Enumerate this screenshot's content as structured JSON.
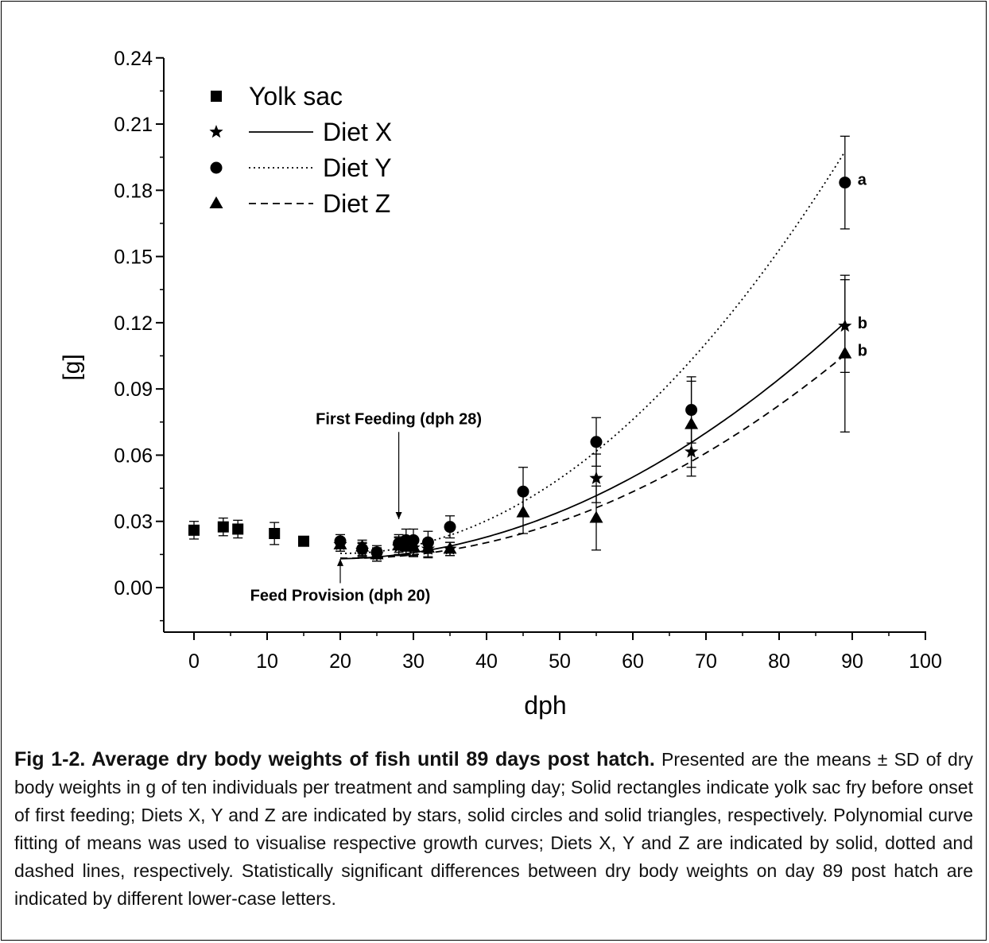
{
  "chart_data": {
    "type": "scatter",
    "xlabel": "dph",
    "ylabel": "[g]",
    "xlim": [
      -4,
      100
    ],
    "ylim": [
      -0.02,
      0.24
    ],
    "xticks": [
      0,
      10,
      20,
      30,
      40,
      50,
      60,
      70,
      80,
      90,
      100
    ],
    "yticks": [
      "0.00",
      "0.03",
      "0.06",
      "0.09",
      "0.12",
      "0.15",
      "0.18",
      "0.21",
      "0.24"
    ],
    "grid": false,
    "legend_position": "top-left",
    "legend": [
      {
        "label": "Yolk sac",
        "marker": "square",
        "line": "none"
      },
      {
        "label": "Diet X",
        "marker": "star",
        "line": "solid"
      },
      {
        "label": "Diet Y",
        "marker": "circle",
        "line": "dotted"
      },
      {
        "label": "Diet Z",
        "marker": "triangle",
        "line": "dashed"
      }
    ],
    "series": [
      {
        "name": "Yolk sac",
        "marker": "square",
        "points": [
          {
            "x": 0,
            "y": 0.026,
            "sd": 0.004
          },
          {
            "x": 4,
            "y": 0.0275,
            "sd": 0.004
          },
          {
            "x": 6,
            "y": 0.0265,
            "sd": 0.004
          },
          {
            "x": 11,
            "y": 0.0245,
            "sd": 0.005
          },
          {
            "x": 15,
            "y": 0.021,
            "sd": 0.001
          }
        ]
      },
      {
        "name": "Diet X",
        "marker": "star",
        "fit": {
          "x0": 20,
          "x1": 89,
          "a": 0.02048,
          "b": -0.000803,
          "c": 2.16e-05
        },
        "points": [
          {
            "x": 20,
            "y": 0.0195,
            "sd": 0.003
          },
          {
            "x": 23,
            "y": 0.017,
            "sd": 0.003
          },
          {
            "x": 25,
            "y": 0.015,
            "sd": 0.003
          },
          {
            "x": 28,
            "y": 0.0185,
            "sd": 0.004
          },
          {
            "x": 29,
            "y": 0.019,
            "sd": 0.004
          },
          {
            "x": 30,
            "y": 0.018,
            "sd": 0.004
          },
          {
            "x": 32,
            "y": 0.0175,
            "sd": 0.004
          },
          {
            "x": 35,
            "y": 0.0175,
            "sd": 0.003
          },
          {
            "x": 55,
            "y": 0.0495,
            "sd": 0.011
          },
          {
            "x": 68,
            "y": 0.0615,
            "sd": 0.011
          },
          {
            "x": 89,
            "y": 0.1185,
            "sd": 0.021
          }
        ]
      },
      {
        "name": "Diet Y",
        "marker": "circle",
        "fit": {
          "x0": 20,
          "x1": 89,
          "a": 0.03163,
          "b": -0.00158,
          "c": 3.87e-05
        },
        "points": [
          {
            "x": 20,
            "y": 0.021,
            "sd": 0.003
          },
          {
            "x": 23,
            "y": 0.0175,
            "sd": 0.003
          },
          {
            "x": 25,
            "y": 0.016,
            "sd": 0.003
          },
          {
            "x": 28,
            "y": 0.02,
            "sd": 0.004
          },
          {
            "x": 29,
            "y": 0.0215,
            "sd": 0.005
          },
          {
            "x": 30,
            "y": 0.0215,
            "sd": 0.005
          },
          {
            "x": 32,
            "y": 0.0205,
            "sd": 0.005
          },
          {
            "x": 35,
            "y": 0.0275,
            "sd": 0.005
          },
          {
            "x": 45,
            "y": 0.0435,
            "sd": 0.011
          },
          {
            "x": 55,
            "y": 0.066,
            "sd": 0.011
          },
          {
            "x": 68,
            "y": 0.0805,
            "sd": 0.015
          },
          {
            "x": 89,
            "y": 0.1835,
            "sd": 0.021
          }
        ]
      },
      {
        "name": "Diet Z",
        "marker": "triangle",
        "fit": {
          "x0": 20,
          "x1": 89,
          "a": 0.02243,
          "b": -0.000856,
          "c": 2.01e-05
        },
        "points": [
          {
            "x": 20,
            "y": 0.0195,
            "sd": 0.003
          },
          {
            "x": 23,
            "y": 0.0185,
            "sd": 0.003
          },
          {
            "x": 25,
            "y": 0.015,
            "sd": 0.003
          },
          {
            "x": 28,
            "y": 0.019,
            "sd": 0.004
          },
          {
            "x": 29,
            "y": 0.0185,
            "sd": 0.004
          },
          {
            "x": 30,
            "y": 0.0185,
            "sd": 0.004
          },
          {
            "x": 32,
            "y": 0.018,
            "sd": 0.004
          },
          {
            "x": 35,
            "y": 0.0175,
            "sd": 0.003
          },
          {
            "x": 45,
            "y": 0.034,
            "sd": 0.0095
          },
          {
            "x": 55,
            "y": 0.0315,
            "sd": 0.0145
          },
          {
            "x": 68,
            "y": 0.074,
            "sd": 0.0195
          },
          {
            "x": 89,
            "y": 0.106,
            "sd": 0.0355
          }
        ]
      }
    ],
    "significance_letters": [
      {
        "series": "Diet Y",
        "x": 89,
        "y": 0.1835,
        "text": "a"
      },
      {
        "series": "Diet X",
        "x": 89,
        "y": 0.1185,
        "text": "b"
      },
      {
        "series": "Diet Z",
        "x": 89,
        "y": 0.106,
        "text": "b"
      }
    ],
    "annotations": [
      {
        "text": "First Feeding (dph 28)",
        "x": 28,
        "arrow_from_y": 0.0705,
        "arrow_to_y": 0.031
      },
      {
        "text": "Feed Provision (dph 20)",
        "x": 20,
        "arrow_from_y": 0.002,
        "arrow_to_y": 0.013
      }
    ]
  },
  "caption": {
    "title": "Fig 1-2. Average dry body weights of fish until 89 days post hatch.",
    "text": "Presented are the means ± SD of dry body weights in g of ten individuals per treatment and sampling day; Solid rectangles indicate yolk sac fry before onset of first feeding; Diets X, Y and Z are indicated by stars, solid circles and solid triangles, respectively. Polynomial curve fitting of means was used to visualise respective growth curves; Diets X, Y and Z are indicated by solid, dotted and dashed lines, respectively. Statistically significant differences between dry body weights on day 89 post hatch are indicated by different lower-case letters."
  }
}
